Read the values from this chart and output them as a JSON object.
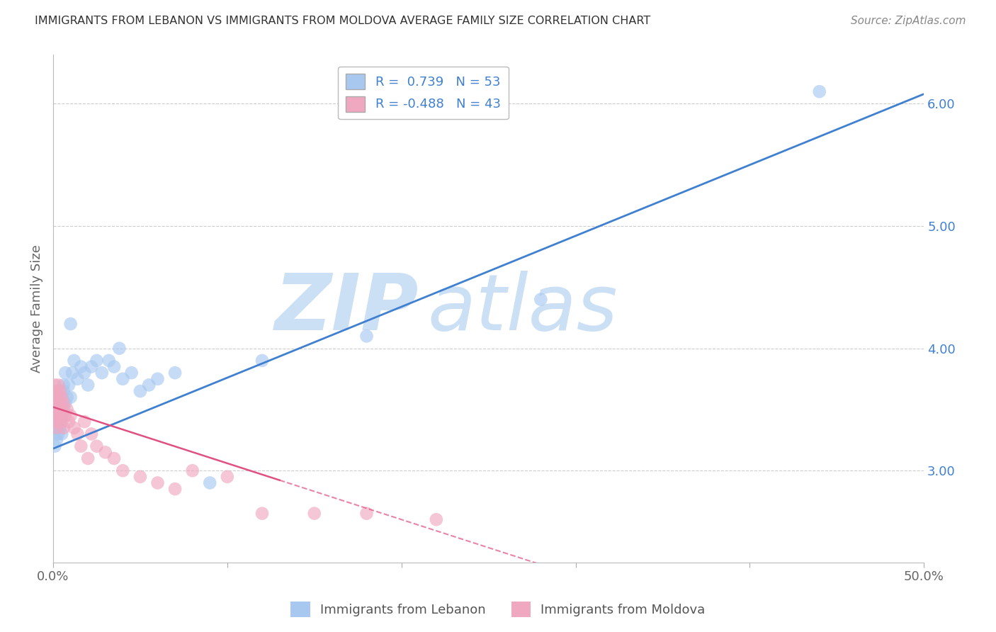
{
  "title": "IMMIGRANTS FROM LEBANON VS IMMIGRANTS FROM MOLDOVA AVERAGE FAMILY SIZE CORRELATION CHART",
  "source": "Source: ZipAtlas.com",
  "ylabel": "Average Family Size",
  "xlim": [
    0.0,
    0.5
  ],
  "ylim": [
    2.25,
    6.4
  ],
  "ytick_right": [
    3.0,
    4.0,
    5.0,
    6.0
  ],
  "legend_r1": "R =  0.739   N = 53",
  "legend_r2": "R = -0.488   N = 43",
  "color_lebanon": "#a8c8f0",
  "color_moldova": "#f0a8c0",
  "color_line_lebanon": "#4080d0",
  "color_line_moldova": "#e05080",
  "watermark_zip": "ZIP",
  "watermark_atlas": "atlas",
  "watermark_color": "#cce0f5",
  "leb_line_x0": 0.0,
  "leb_line_y0": 3.18,
  "leb_line_x1": 0.5,
  "leb_line_y1": 6.08,
  "mol_line_x0": 0.0,
  "mol_line_y0": 3.52,
  "mol_line_x1": 0.2,
  "mol_line_y1": 2.6,
  "lebanon_x": [
    0.001,
    0.001,
    0.001,
    0.001,
    0.002,
    0.002,
    0.002,
    0.002,
    0.002,
    0.003,
    0.003,
    0.003,
    0.003,
    0.003,
    0.004,
    0.004,
    0.004,
    0.004,
    0.005,
    0.005,
    0.005,
    0.006,
    0.006,
    0.006,
    0.007,
    0.007,
    0.008,
    0.009,
    0.01,
    0.01,
    0.011,
    0.012,
    0.014,
    0.016,
    0.018,
    0.02,
    0.022,
    0.025,
    0.028,
    0.032,
    0.035,
    0.038,
    0.04,
    0.045,
    0.05,
    0.055,
    0.06,
    0.07,
    0.09,
    0.12,
    0.18,
    0.28,
    0.44
  ],
  "lebanon_y": [
    3.5,
    3.35,
    3.2,
    3.4,
    3.3,
    3.5,
    3.6,
    3.25,
    3.45,
    3.35,
    3.55,
    3.45,
    3.6,
    3.3,
    3.4,
    3.5,
    3.35,
    3.55,
    3.45,
    3.6,
    3.3,
    3.7,
    3.5,
    3.65,
    3.8,
    3.55,
    3.6,
    3.7,
    4.2,
    3.6,
    3.8,
    3.9,
    3.75,
    3.85,
    3.8,
    3.7,
    3.85,
    3.9,
    3.8,
    3.9,
    3.85,
    4.0,
    3.75,
    3.8,
    3.65,
    3.7,
    3.75,
    3.8,
    2.9,
    3.9,
    4.1,
    4.4,
    6.1
  ],
  "moldova_x": [
    0.001,
    0.001,
    0.001,
    0.001,
    0.002,
    0.002,
    0.002,
    0.002,
    0.003,
    0.003,
    0.003,
    0.003,
    0.004,
    0.004,
    0.004,
    0.005,
    0.005,
    0.005,
    0.006,
    0.006,
    0.007,
    0.008,
    0.009,
    0.01,
    0.012,
    0.014,
    0.016,
    0.018,
    0.02,
    0.022,
    0.025,
    0.03,
    0.035,
    0.04,
    0.05,
    0.06,
    0.07,
    0.08,
    0.1,
    0.12,
    0.15,
    0.18,
    0.22
  ],
  "moldova_y": [
    3.6,
    3.5,
    3.4,
    3.7,
    3.55,
    3.45,
    3.65,
    3.35,
    3.5,
    3.6,
    3.4,
    3.7,
    3.45,
    3.55,
    3.65,
    3.4,
    3.5,
    3.6,
    3.35,
    3.55,
    3.45,
    3.5,
    3.4,
    3.45,
    3.35,
    3.3,
    3.2,
    3.4,
    3.1,
    3.3,
    3.2,
    3.15,
    3.1,
    3.0,
    2.95,
    2.9,
    2.85,
    3.0,
    2.95,
    2.65,
    2.65,
    2.65,
    2.6
  ]
}
